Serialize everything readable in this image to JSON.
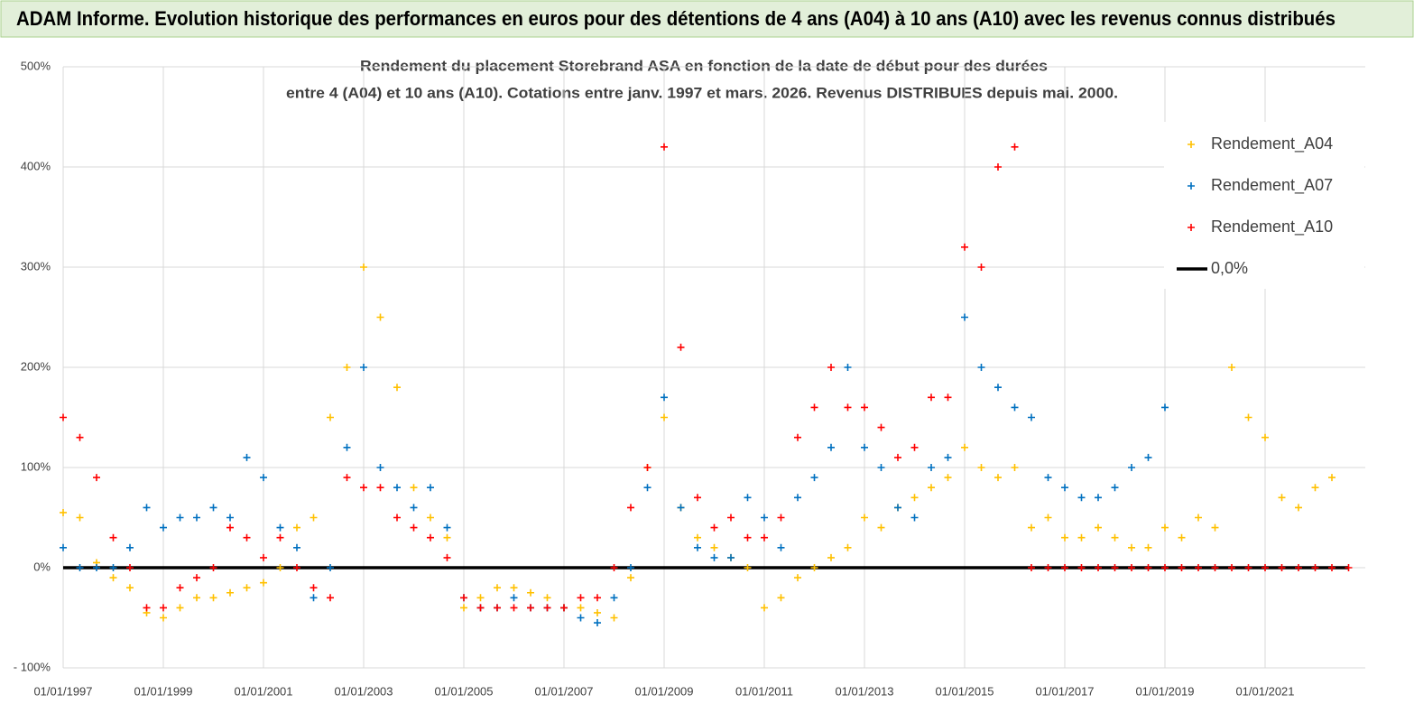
{
  "header": {
    "title": "ADAM Informe. Evolution historique des performances en euros pour des détentions de 4 ans (A04) à 10 ans (A10) avec les revenus connus distribués"
  },
  "chart_data": {
    "type": "scatter",
    "title": [
      "Rendement du placement Storebrand ASA en fonction de la date de début pour des durées",
      "entre 4 (A04) et 10 ans (A10). Cotations entre janv. 1997 et mars. 2026. Revenus DISTRIBUES depuis mai. 2000."
    ],
    "xlim": [
      "01/01/1997",
      "01/01/2023"
    ],
    "xticks": [
      "01/01/1997",
      "01/01/1999",
      "01/01/2001",
      "01/01/2003",
      "01/01/2005",
      "01/01/2007",
      "01/01/2009",
      "01/01/2011",
      "01/01/2013",
      "01/01/2015",
      "01/01/2017",
      "01/01/2019",
      "01/01/2021"
    ],
    "ylim": [
      -100,
      500
    ],
    "yticks": [
      {
        "value": -100,
        "label": "- 100%"
      },
      {
        "value": 0,
        "label": "0%"
      },
      {
        "value": 100,
        "label": "100%"
      },
      {
        "value": 200,
        "label": "200%"
      },
      {
        "value": 300,
        "label": "300%"
      },
      {
        "value": 400,
        "label": "400%"
      },
      {
        "value": 500,
        "label": "500%"
      }
    ],
    "grid": true,
    "legend": "upper right",
    "x": [
      "01/01/1997",
      "01/05/1997",
      "01/09/1997",
      "01/01/1998",
      "01/05/1998",
      "01/09/1998",
      "01/01/1999",
      "01/05/1999",
      "01/09/1999",
      "01/01/2000",
      "01/05/2000",
      "01/09/2000",
      "01/01/2001",
      "01/05/2001",
      "01/09/2001",
      "01/01/2002",
      "01/05/2002",
      "01/09/2002",
      "01/01/2003",
      "01/05/2003",
      "01/09/2003",
      "01/01/2004",
      "01/05/2004",
      "01/09/2004",
      "01/01/2005",
      "01/05/2005",
      "01/09/2005",
      "01/01/2006",
      "01/05/2006",
      "01/09/2006",
      "01/01/2007",
      "01/05/2007",
      "01/09/2007",
      "01/01/2008",
      "01/05/2008",
      "01/09/2008",
      "01/01/2009",
      "01/05/2009",
      "01/09/2009",
      "01/01/2010",
      "01/05/2010",
      "01/09/2010",
      "01/01/2011",
      "01/05/2011",
      "01/09/2011",
      "01/01/2012",
      "01/05/2012",
      "01/09/2012",
      "01/01/2013",
      "01/05/2013",
      "01/09/2013",
      "01/01/2014",
      "01/05/2014",
      "01/09/2014",
      "01/01/2015",
      "01/05/2015",
      "01/09/2015",
      "01/01/2016",
      "01/05/2016",
      "01/09/2016",
      "01/01/2017",
      "01/05/2017",
      "01/09/2017",
      "01/01/2018",
      "01/05/2018",
      "01/09/2018",
      "01/01/2019",
      "01/05/2019",
      "01/09/2019",
      "01/01/2020",
      "01/05/2020",
      "01/09/2020",
      "01/01/2021",
      "01/05/2021",
      "01/09/2021",
      "01/01/2022",
      "01/05/2022",
      "01/09/2022"
    ],
    "series": [
      {
        "name": "Rendement_A04",
        "color": "#ffc000",
        "kind": "scatter",
        "values": [
          55,
          50,
          5,
          -10,
          -20,
          -45,
          -50,
          -40,
          -30,
          -30,
          -25,
          -20,
          -15,
          0,
          40,
          50,
          150,
          200,
          300,
          250,
          180,
          80,
          50,
          30,
          -40,
          -30,
          -20,
          -20,
          -25,
          -30,
          -40,
          -40,
          -45,
          -50,
          -10,
          100,
          150,
          60,
          30,
          20,
          10,
          0,
          -40,
          -30,
          -10,
          0,
          10,
          20,
          50,
          40,
          60,
          70,
          80,
          90,
          120,
          100,
          90,
          100,
          40,
          50,
          30,
          30,
          40,
          30,
          20,
          20,
          40,
          30,
          50,
          40,
          200,
          150,
          130,
          70,
          60,
          80,
          90,
          null
        ]
      },
      {
        "name": "Rendement_A07",
        "color": "#0070c0",
        "kind": "scatter",
        "values": [
          20,
          0,
          0,
          0,
          20,
          60,
          40,
          50,
          50,
          60,
          50,
          110,
          90,
          40,
          20,
          -30,
          0,
          120,
          200,
          100,
          80,
          60,
          80,
          40,
          -30,
          -40,
          -40,
          -30,
          -40,
          -40,
          -40,
          -50,
          -55,
          -30,
          0,
          80,
          170,
          60,
          20,
          10,
          10,
          70,
          50,
          20,
          70,
          90,
          120,
          200,
          120,
          100,
          60,
          50,
          100,
          110,
          250,
          200,
          180,
          160,
          150,
          90,
          80,
          70,
          70,
          80,
          100,
          110,
          160,
          null,
          null,
          null,
          null,
          null,
          null,
          null,
          null,
          null,
          null,
          null
        ]
      },
      {
        "name": "Rendement_A10",
        "color": "#ff0000",
        "kind": "scatter",
        "values": [
          150,
          130,
          90,
          30,
          0,
          -40,
          -40,
          -20,
          -10,
          0,
          40,
          30,
          10,
          30,
          0,
          -20,
          -30,
          90,
          80,
          80,
          50,
          40,
          30,
          10,
          -30,
          -40,
          -40,
          -40,
          -40,
          -40,
          -40,
          -30,
          -30,
          0,
          60,
          100,
          420,
          220,
          70,
          40,
          50,
          30,
          30,
          50,
          130,
          160,
          200,
          160,
          160,
          140,
          110,
          120,
          170,
          170,
          320,
          300,
          400,
          420,
          0,
          0,
          0,
          0,
          0,
          0,
          0,
          0,
          0,
          0,
          0,
          0,
          0,
          0,
          0,
          0,
          0,
          0,
          0,
          0
        ]
      },
      {
        "name": "0,0%",
        "color": "#000000",
        "kind": "line",
        "values": [
          0,
          0,
          0,
          0,
          0,
          0,
          0,
          0,
          0,
          0,
          0,
          0,
          0,
          0,
          0,
          0,
          0,
          0,
          0,
          0,
          0,
          0,
          0,
          0,
          0,
          0,
          0,
          0,
          0,
          0,
          0,
          0,
          0,
          0,
          0,
          0,
          0,
          0,
          0,
          0,
          0,
          0,
          0,
          0,
          0,
          0,
          0,
          0,
          0,
          0,
          0,
          0,
          0,
          0,
          0,
          0,
          0,
          0,
          0,
          0,
          0,
          0,
          0,
          0,
          0,
          0,
          0,
          0,
          0,
          0,
          0,
          0,
          0,
          0,
          0,
          0,
          0,
          0
        ]
      }
    ]
  }
}
